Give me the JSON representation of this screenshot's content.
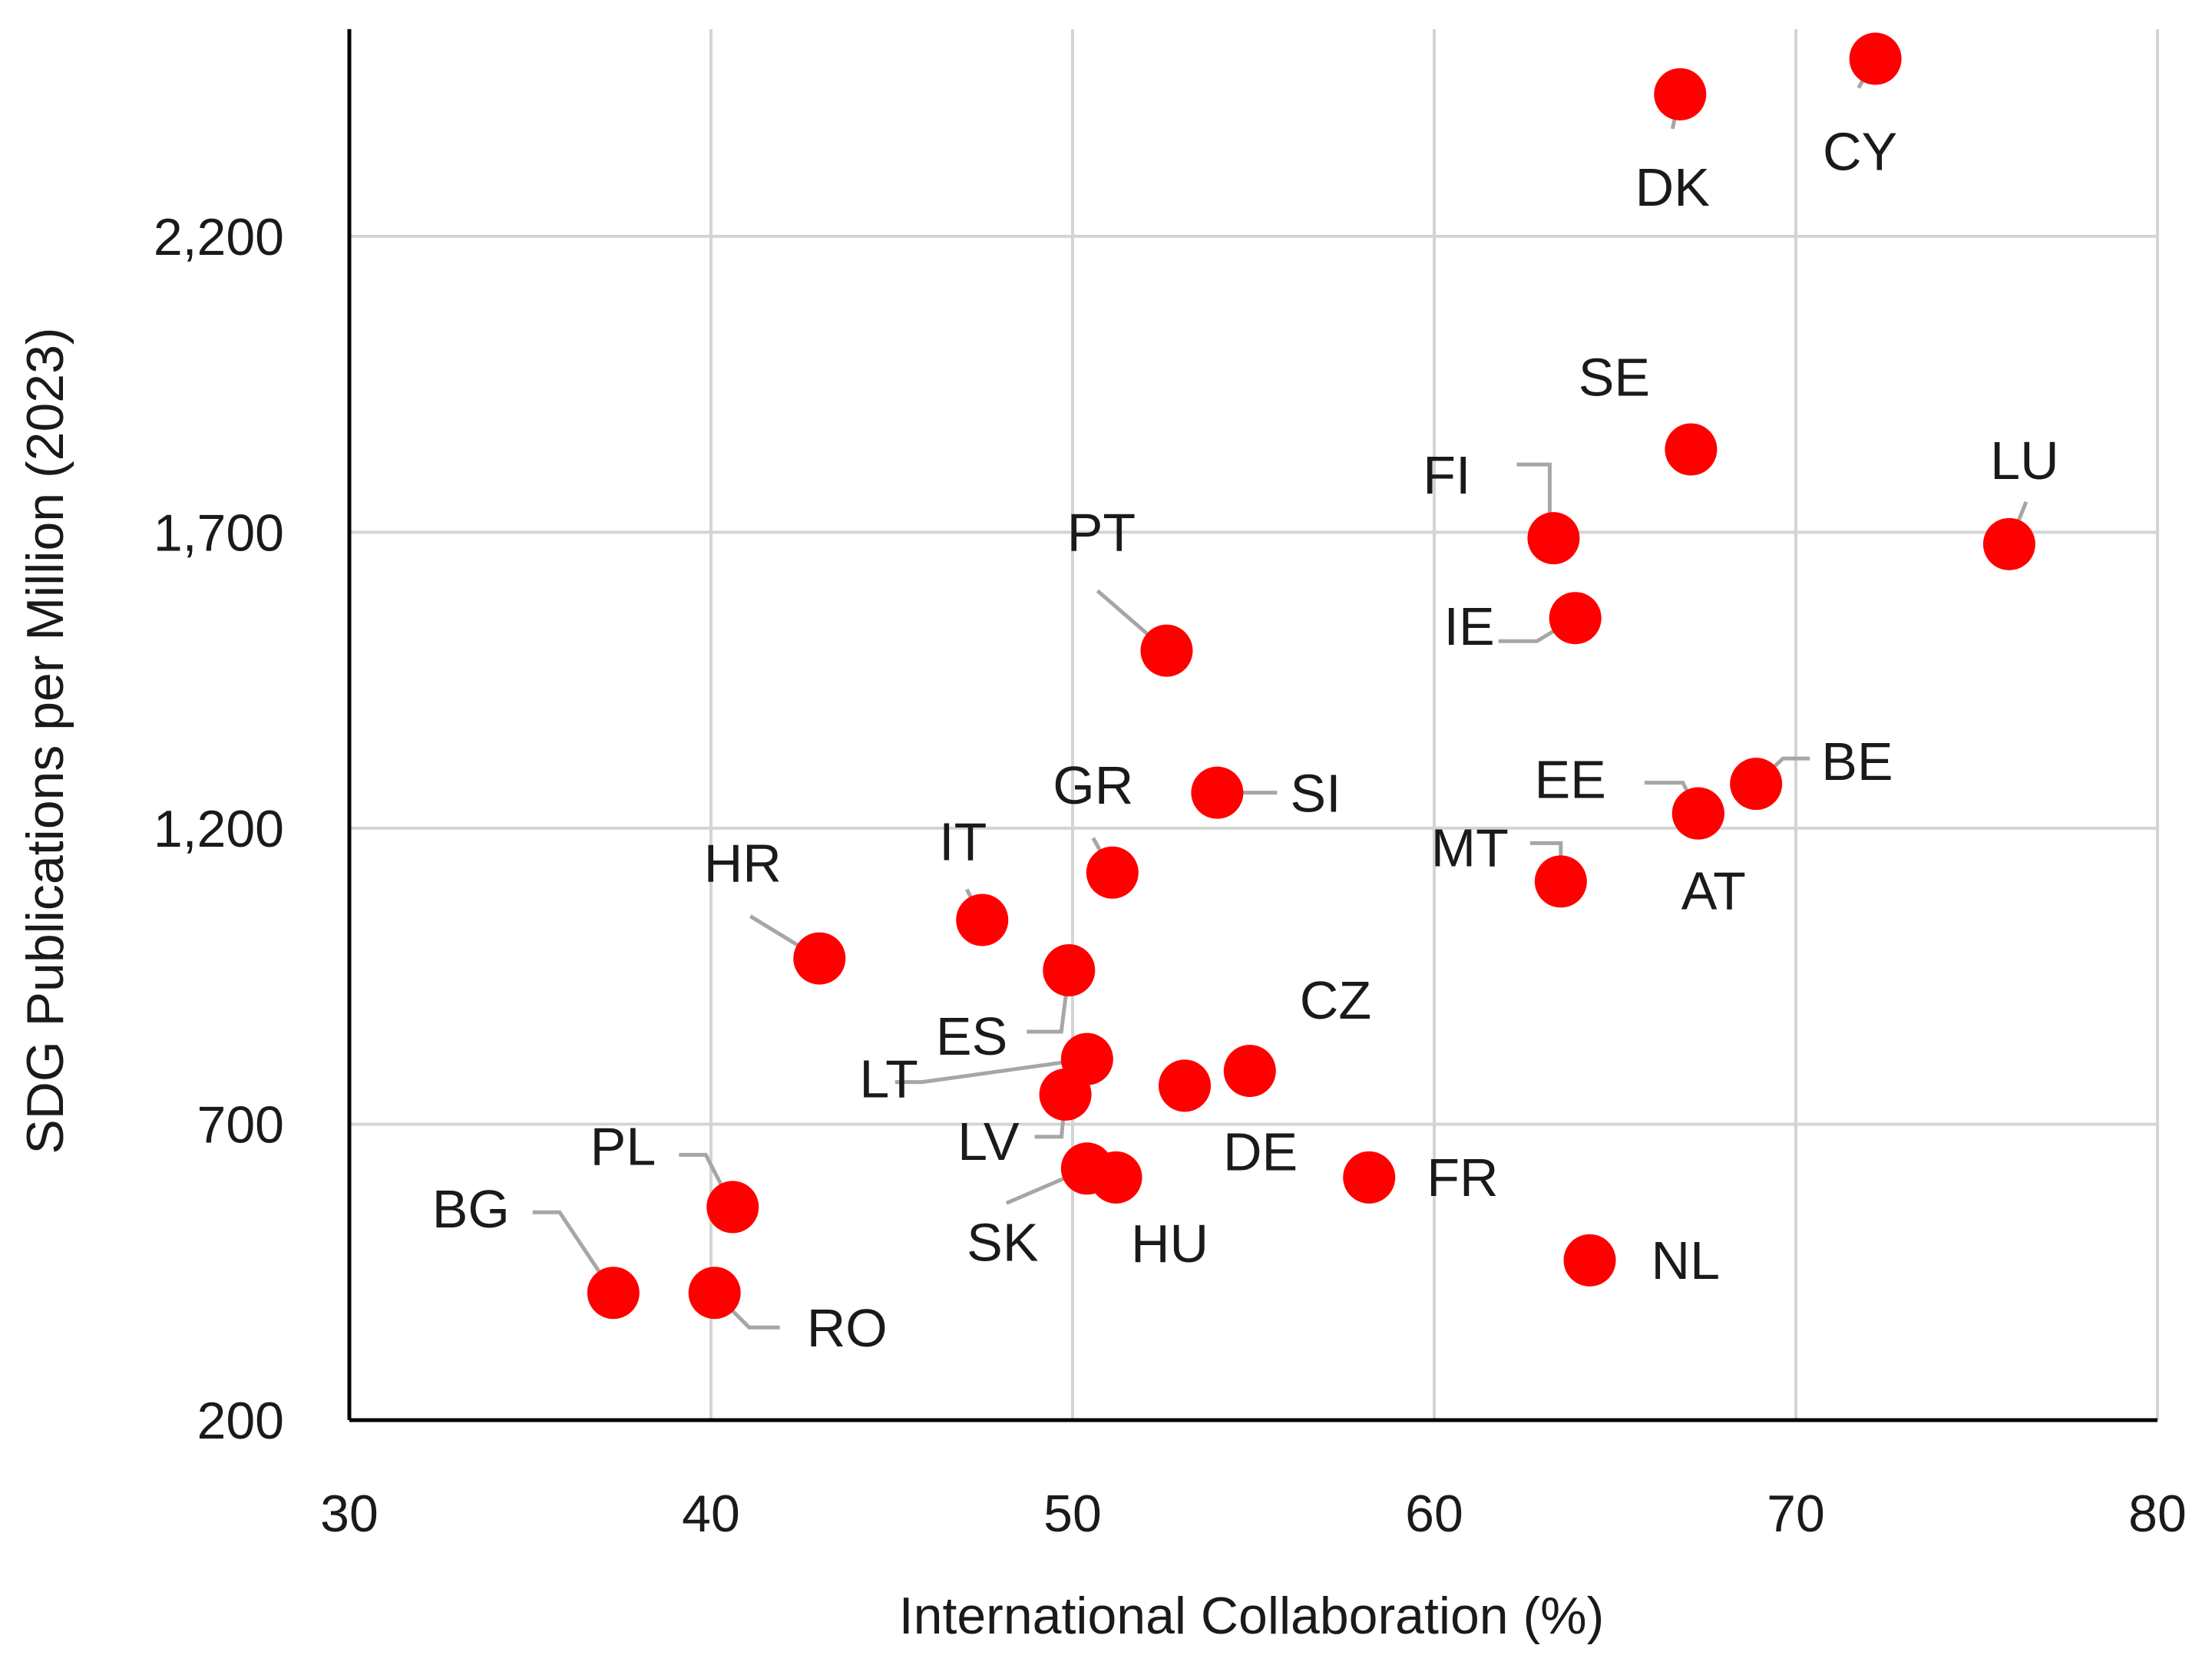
{
  "chart_data": {
    "type": "scatter",
    "title": "",
    "xlabel": "International Collaboration (%)",
    "ylabel": "SDG Publications per Million (2023)",
    "xlim": [
      30,
      80
    ],
    "ylim": [
      200,
      2550
    ],
    "x_ticks": [
      30,
      40,
      50,
      60,
      70,
      80
    ],
    "x_tick_labels": [
      "30",
      "40",
      "50",
      "60",
      "70",
      "80"
    ],
    "y_ticks": [
      200,
      700,
      1200,
      1700,
      2200
    ],
    "y_tick_labels": [
      "200",
      "700",
      "1,200",
      "1,700",
      "2,200"
    ],
    "grid": true,
    "marker_color": "#ff0000",
    "points": [
      {
        "label": "CY",
        "x": 72.2,
        "y": 2500
      },
      {
        "label": "DK",
        "x": 66.8,
        "y": 2440
      },
      {
        "label": "SE",
        "x": 67.1,
        "y": 1840
      },
      {
        "label": "FI",
        "x": 63.3,
        "y": 1690
      },
      {
        "label": "LU",
        "x": 75.9,
        "y": 1680
      },
      {
        "label": "IE",
        "x": 63.9,
        "y": 1555
      },
      {
        "label": "PT",
        "x": 52.6,
        "y": 1500
      },
      {
        "label": "BE",
        "x": 68.9,
        "y": 1275
      },
      {
        "label": "SI",
        "x": 54.0,
        "y": 1260
      },
      {
        "label": "EE",
        "x": 67.3,
        "y": 1225
      },
      {
        "label": "AT",
        "x": 67.3,
        "y": 1225
      },
      {
        "label": "GR",
        "x": 51.1,
        "y": 1125
      },
      {
        "label": "MT",
        "x": 63.5,
        "y": 1110
      },
      {
        "label": "IT",
        "x": 47.5,
        "y": 1045
      },
      {
        "label": "HR",
        "x": 43.0,
        "y": 980
      },
      {
        "label": "ES",
        "x": 49.9,
        "y": 960
      },
      {
        "label": "LT",
        "x": 50.4,
        "y": 810
      },
      {
        "label": "CZ",
        "x": 54.9,
        "y": 790
      },
      {
        "label": "DE",
        "x": 53.1,
        "y": 765
      },
      {
        "label": "LV",
        "x": 49.8,
        "y": 750
      },
      {
        "label": "FR",
        "x": 58.2,
        "y": 610
      },
      {
        "label": "SK",
        "x": 50.4,
        "y": 625
      },
      {
        "label": "HU",
        "x": 51.2,
        "y": 610
      },
      {
        "label": "PL",
        "x": 40.6,
        "y": 560
      },
      {
        "label": "NL",
        "x": 64.3,
        "y": 470
      },
      {
        "label": "BG",
        "x": 37.3,
        "y": 415
      },
      {
        "label": "RO",
        "x": 40.1,
        "y": 415
      }
    ]
  }
}
